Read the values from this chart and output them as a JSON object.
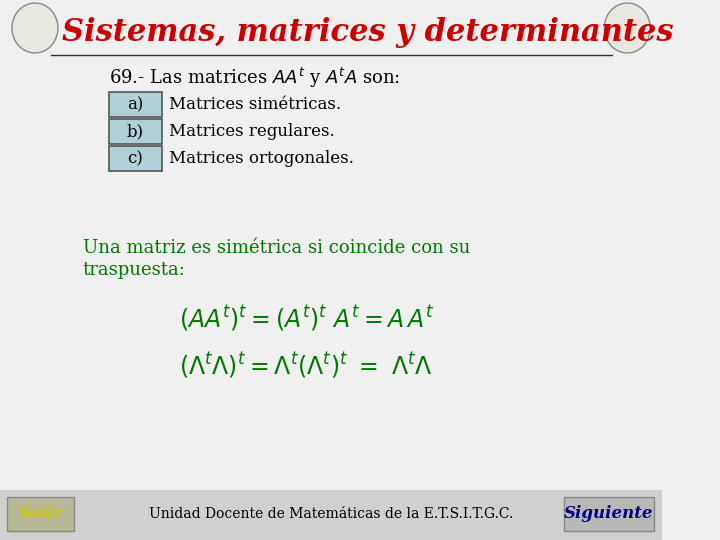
{
  "background_color": "#f0f0f0",
  "title": "Sistemas, matrices y determinantes",
  "title_color": "#cc0000",
  "title_fontsize": 22,
  "options": [
    "a)",
    "b)",
    "c)"
  ],
  "option_texts": [
    "Matrices simétricas.",
    "Matrices regulares.",
    "Matrices ortogonales."
  ],
  "option_box_color": "#b0d0d8",
  "option_text_color": "#000000",
  "green_text_line1": "Una matriz es simétrica si coincide con su",
  "green_text_line2": "traspuesta:",
  "green_color": "#007700",
  "footer_text": "Unidad Docente de Matemáticas de la E.T.S.I.T.G.C.",
  "salir_text": "Salir",
  "siguiente_text": "Siguiente",
  "button_bg": "#c8c8c8",
  "salir_color": "#cccc00",
  "siguiente_color": "#000080"
}
